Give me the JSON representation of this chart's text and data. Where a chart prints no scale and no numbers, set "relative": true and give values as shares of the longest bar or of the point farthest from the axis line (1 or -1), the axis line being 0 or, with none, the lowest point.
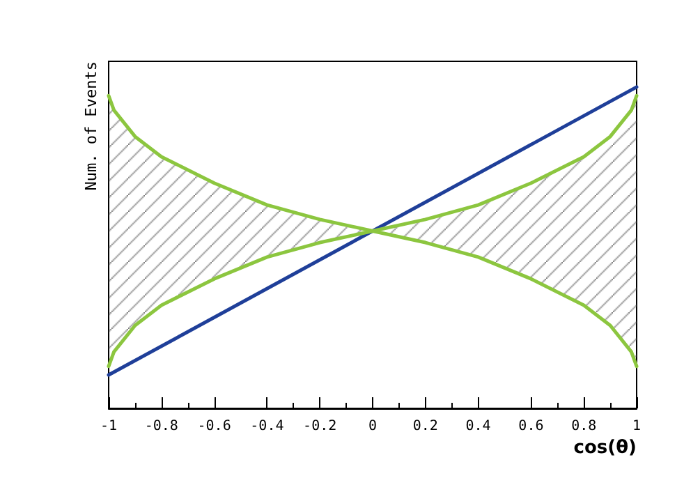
{
  "chart_data": {
    "type": "line",
    "relative": true,
    "xlabel": "cos(θ)",
    "ylabel": "Num. of Events",
    "xlim": [
      -1,
      1
    ],
    "xticks": [
      -1,
      -0.8,
      -0.6,
      -0.4,
      -0.2,
      0,
      0.2,
      0.4,
      0.6,
      0.8,
      1
    ],
    "grid": false,
    "marker": "none",
    "line_style": "solid",
    "series": [
      {
        "color": "#1f3f99",
        "x": [
          -1,
          1
        ],
        "values": [
          0.104,
          1
        ]
      },
      {
        "color": "#8cc63f",
        "x": [
          -1,
          -0.98,
          -0.9,
          -0.8,
          -0.6,
          -0.4,
          -0.2,
          0,
          0.2,
          0.4,
          0.6,
          0.8,
          0.9,
          0.98,
          1
        ],
        "values": [
          0.973,
          0.928,
          0.846,
          0.783,
          0.701,
          0.633,
          0.588,
          0.552,
          0.516,
          0.471,
          0.403,
          0.321,
          0.258,
          0.176,
          0.131
        ]
      },
      {
        "color": "#8cc63f",
        "x": [
          -1,
          -0.98,
          -0.9,
          -0.8,
          -0.6,
          -0.4,
          -0.2,
          0,
          0.2,
          0.4,
          0.6,
          0.8,
          0.9,
          0.98,
          1
        ],
        "values": [
          0.131,
          0.176,
          0.258,
          0.321,
          0.403,
          0.471,
          0.516,
          0.552,
          0.588,
          0.633,
          0.701,
          0.783,
          0.846,
          0.928,
          0.973
        ]
      }
    ]
  }
}
